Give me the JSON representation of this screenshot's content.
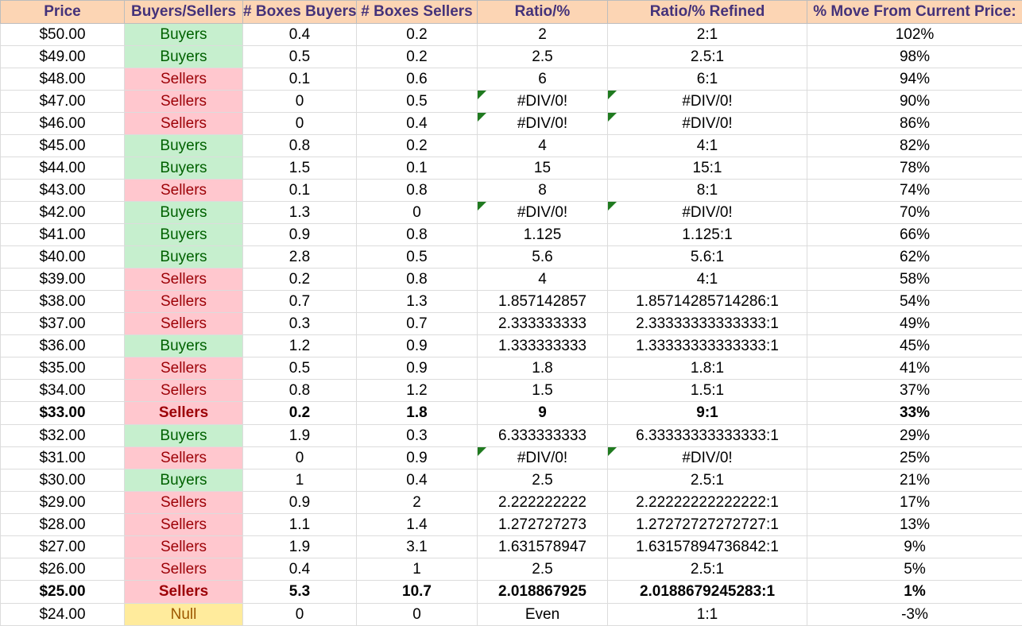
{
  "headers": [
    "Price",
    "Buyers/Sellers",
    "# Boxes Buyers",
    "# Boxes Sellers",
    "Ratio/%",
    "Ratio/% Refined",
    "% Move From Current Price:"
  ],
  "rows": [
    {
      "price": "$50.00",
      "side": "Buyers",
      "buyers": "0.4",
      "sellers": "0.2",
      "ratio": "2",
      "refined": "2:1",
      "move": "102%"
    },
    {
      "price": "$49.00",
      "side": "Buyers",
      "buyers": "0.5",
      "sellers": "0.2",
      "ratio": "2.5",
      "refined": "2.5:1",
      "move": "98%"
    },
    {
      "price": "$48.00",
      "side": "Sellers",
      "buyers": "0.1",
      "sellers": "0.6",
      "ratio": "6",
      "refined": "6:1",
      "move": "94%"
    },
    {
      "price": "$47.00",
      "side": "Sellers",
      "buyers": "0",
      "sellers": "0.5",
      "ratio": "#DIV/0!",
      "refined": "#DIV/0!",
      "move": "90%",
      "error": true
    },
    {
      "price": "$46.00",
      "side": "Sellers",
      "buyers": "0",
      "sellers": "0.4",
      "ratio": "#DIV/0!",
      "refined": "#DIV/0!",
      "move": "86%",
      "error": true
    },
    {
      "price": "$45.00",
      "side": "Buyers",
      "buyers": "0.8",
      "sellers": "0.2",
      "ratio": "4",
      "refined": "4:1",
      "move": "82%"
    },
    {
      "price": "$44.00",
      "side": "Buyers",
      "buyers": "1.5",
      "sellers": "0.1",
      "ratio": "15",
      "refined": "15:1",
      "move": "78%"
    },
    {
      "price": "$43.00",
      "side": "Sellers",
      "buyers": "0.1",
      "sellers": "0.8",
      "ratio": "8",
      "refined": "8:1",
      "move": "74%"
    },
    {
      "price": "$42.00",
      "side": "Buyers",
      "buyers": "1.3",
      "sellers": "0",
      "ratio": "#DIV/0!",
      "refined": "#DIV/0!",
      "move": "70%",
      "error": true
    },
    {
      "price": "$41.00",
      "side": "Buyers",
      "buyers": "0.9",
      "sellers": "0.8",
      "ratio": "1.125",
      "refined": "1.125:1",
      "move": "66%"
    },
    {
      "price": "$40.00",
      "side": "Buyers",
      "buyers": "2.8",
      "sellers": "0.5",
      "ratio": "5.6",
      "refined": "5.6:1",
      "move": "62%"
    },
    {
      "price": "$39.00",
      "side": "Sellers",
      "buyers": "0.2",
      "sellers": "0.8",
      "ratio": "4",
      "refined": "4:1",
      "move": "58%"
    },
    {
      "price": "$38.00",
      "side": "Sellers",
      "buyers": "0.7",
      "sellers": "1.3",
      "ratio": "1.857142857",
      "refined": "1.85714285714286:1",
      "move": "54%"
    },
    {
      "price": "$37.00",
      "side": "Sellers",
      "buyers": "0.3",
      "sellers": "0.7",
      "ratio": "2.333333333",
      "refined": "2.33333333333333:1",
      "move": "49%"
    },
    {
      "price": "$36.00",
      "side": "Buyers",
      "buyers": "1.2",
      "sellers": "0.9",
      "ratio": "1.333333333",
      "refined": "1.33333333333333:1",
      "move": "45%"
    },
    {
      "price": "$35.00",
      "side": "Sellers",
      "buyers": "0.5",
      "sellers": "0.9",
      "ratio": "1.8",
      "refined": "1.8:1",
      "move": "41%"
    },
    {
      "price": "$34.00",
      "side": "Sellers",
      "buyers": "0.8",
      "sellers": "1.2",
      "ratio": "1.5",
      "refined": "1.5:1",
      "move": "37%"
    },
    {
      "price": "$33.00",
      "side": "Sellers",
      "buyers": "0.2",
      "sellers": "1.8",
      "ratio": "9",
      "refined": "9:1",
      "move": "33%",
      "bold": true
    },
    {
      "price": "$32.00",
      "side": "Buyers",
      "buyers": "1.9",
      "sellers": "0.3",
      "ratio": "6.333333333",
      "refined": "6.33333333333333:1",
      "move": "29%"
    },
    {
      "price": "$31.00",
      "side": "Sellers",
      "buyers": "0",
      "sellers": "0.9",
      "ratio": "#DIV/0!",
      "refined": "#DIV/0!",
      "move": "25%",
      "error": true
    },
    {
      "price": "$30.00",
      "side": "Buyers",
      "buyers": "1",
      "sellers": "0.4",
      "ratio": "2.5",
      "refined": "2.5:1",
      "move": "21%"
    },
    {
      "price": "$29.00",
      "side": "Sellers",
      "buyers": "0.9",
      "sellers": "2",
      "ratio": "2.222222222",
      "refined": "2.22222222222222:1",
      "move": "17%"
    },
    {
      "price": "$28.00",
      "side": "Sellers",
      "buyers": "1.1",
      "sellers": "1.4",
      "ratio": "1.272727273",
      "refined": "1.27272727272727:1",
      "move": "13%"
    },
    {
      "price": "$27.00",
      "side": "Sellers",
      "buyers": "1.9",
      "sellers": "3.1",
      "ratio": "1.631578947",
      "refined": "1.63157894736842:1",
      "move": "9%"
    },
    {
      "price": "$26.00",
      "side": "Sellers",
      "buyers": "0.4",
      "sellers": "1",
      "ratio": "2.5",
      "refined": "2.5:1",
      "move": "5%"
    },
    {
      "price": "$25.00",
      "side": "Sellers",
      "buyers": "5.3",
      "sellers": "10.7",
      "ratio": "2.018867925",
      "refined": "2.0188679245283:1",
      "move": "1%",
      "bold": true
    },
    {
      "price": "$24.00",
      "side": "Null",
      "buyers": "0",
      "sellers": "0",
      "ratio": "Even",
      "refined": "1:1",
      "move": "-3%"
    }
  ],
  "colors": {
    "header_bg": "#fcd5b4",
    "header_text": "#44327a",
    "buyers_bg": "#c6efce",
    "buyers_text": "#006100",
    "sellers_bg": "#ffc7ce",
    "sellers_text": "#9c0006",
    "null_bg": "#ffeb9c",
    "null_text": "#9c5700",
    "error_indicator": "#1f7a1f"
  }
}
